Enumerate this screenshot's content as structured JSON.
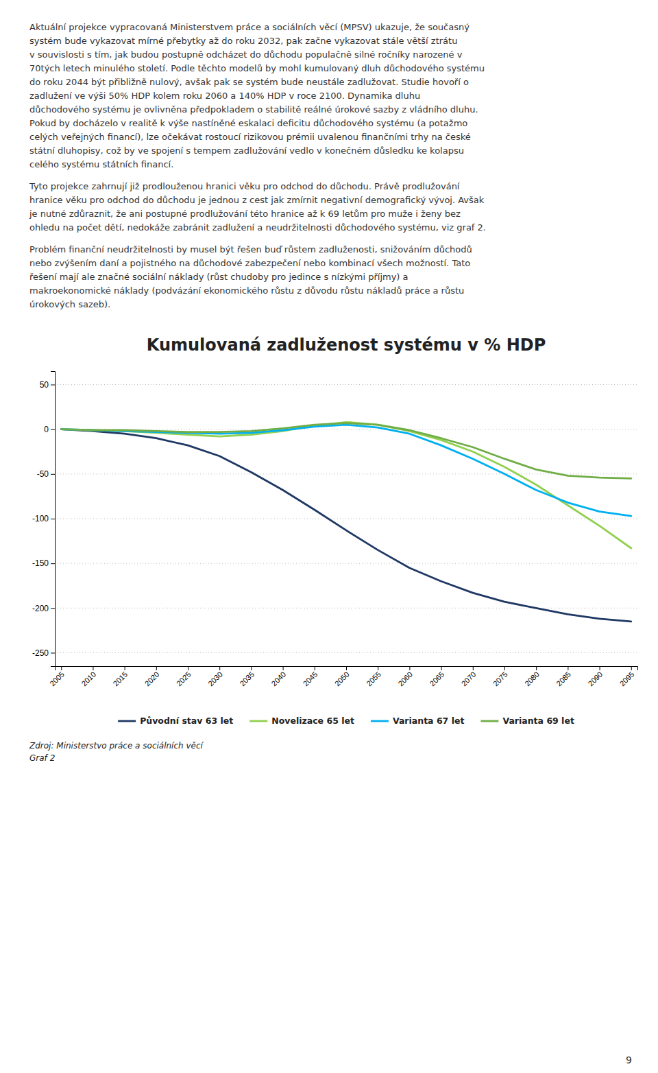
{
  "paragraphs": [
    [
      "Aktuální projekce vypracovaná Ministerstvem práce a sociálních věcí (MPSV) ukazuje, že současný",
      "systém bude vykazovat mírné přebytky až do roku 2032, pak začne vykazovat stále větší ztrátu",
      "v souvislosti s tím, jak budou postupně odcházet do důchodu populačně silné ročníky narozené v",
      "70tých letech minulého století. Podle těchto modelů by mohl kumulovaný dluh důchodového systému",
      "do roku 2044 být přibližně nulový, avšak pak se systém bude neustále zadlužovat. Studie hovoří o",
      "zadlužení ve výši 50% HDP kolem roku 2060 a 140% HDP v roce 2100. Dynamika dluhu",
      "důchodového systému je ovlivněna předpokladem o stabilitě reálné úrokové sazby z vládního dluhu.",
      "Pokud by docházelo v realitě k výše nastíněné eskalaci deficitu důchodového systému (a potažmo",
      "celých veřejných financí), lze očekávat rostoucí rizikovou prémii uvalenou finančními trhy na české",
      "státní dluhopisy, což by ve spojení s tempem zadlužování vedlo v konečném důsledku ke kolapsu",
      "celého systému státních financí."
    ],
    [
      "Tyto projekce zahrnují již prodlouženou hranici věku pro odchod do důchodu. Právě prodlužování",
      "hranice věku pro odchod do důchodu je jednou z cest jak zmírnit negativní demografický vývoj. Avšak",
      "je nutné zdůraznit, že ani postupné prodlužování této hranice až k 69 letům pro muže i ženy bez",
      "ohledu na počet dětí, nedokáže zabránit zadlužení a neudržitelnosti důchodového systému, viz graf 2."
    ],
    [
      "Problém finanční neudržitelnosti by musel být řešen buď růstem zadluženosti, snižováním důchodů",
      "nebo zvýšením daní a pojistného na důchodové zabezpečení nebo kombinací všech možností. Tato",
      "řešení mají ale značné sociální náklady (růst chudoby pro jedince s nízkými příjmy) a",
      "makroekonomické náklady (podvázání ekonomického růstu z důvodu růstu nákladů práce a růstu",
      "úrokových sazeb)."
    ]
  ],
  "chart_data": {
    "type": "line",
    "title": "Kumulovaná zadluženost systému v % HDP",
    "x": [
      2005,
      2010,
      2015,
      2020,
      2025,
      2030,
      2035,
      2040,
      2045,
      2050,
      2055,
      2060,
      2065,
      2070,
      2075,
      2080,
      2085,
      2090,
      2095
    ],
    "series": [
      {
        "name": "Původní stav 63 let",
        "color": "#1F3864",
        "values": [
          0,
          -2,
          -5,
          -10,
          -18,
          -30,
          -48,
          -68,
          -90,
          -113,
          -135,
          -155,
          -170,
          -183,
          -193,
          -200,
          -207,
          -212,
          -215
        ]
      },
      {
        "name": "Novelizace 65 let",
        "color": "#92D050",
        "values": [
          0,
          -1,
          -2,
          -4,
          -6,
          -8,
          -6,
          -2,
          4,
          8,
          5,
          -2,
          -12,
          -25,
          -42,
          -62,
          -85,
          -108,
          -133
        ]
      },
      {
        "name": "Varianta 67 let",
        "color": "#00B0F0",
        "values": [
          0,
          -1,
          -2,
          -3,
          -4,
          -5,
          -4,
          -1,
          3,
          5,
          2,
          -5,
          -18,
          -33,
          -50,
          -68,
          -82,
          -92,
          -97
        ]
      },
      {
        "name": "Varianta 69 let",
        "color": "#70AD47",
        "values": [
          0,
          -1,
          -1,
          -2,
          -3,
          -3,
          -2,
          1,
          5,
          7,
          5,
          -1,
          -10,
          -20,
          -33,
          -45,
          -52,
          -54,
          -55
        ]
      }
    ],
    "xlim": [
      2004,
      2096
    ],
    "xticks": [
      2005,
      2010,
      2015,
      2020,
      2025,
      2030,
      2035,
      2040,
      2045,
      2050,
      2055,
      2060,
      2065,
      2070,
      2075,
      2080,
      2085,
      2090,
      2095
    ],
    "ylim": [
      -265,
      65
    ],
    "yticks": [
      50,
      0,
      -50,
      -100,
      -150,
      -200,
      -250
    ],
    "grid": true,
    "legend": "bottom"
  },
  "notes": [
    "Zdroj: Ministerstvo práce a sociálních věcí",
    "Graf 2"
  ],
  "page_number": "9"
}
